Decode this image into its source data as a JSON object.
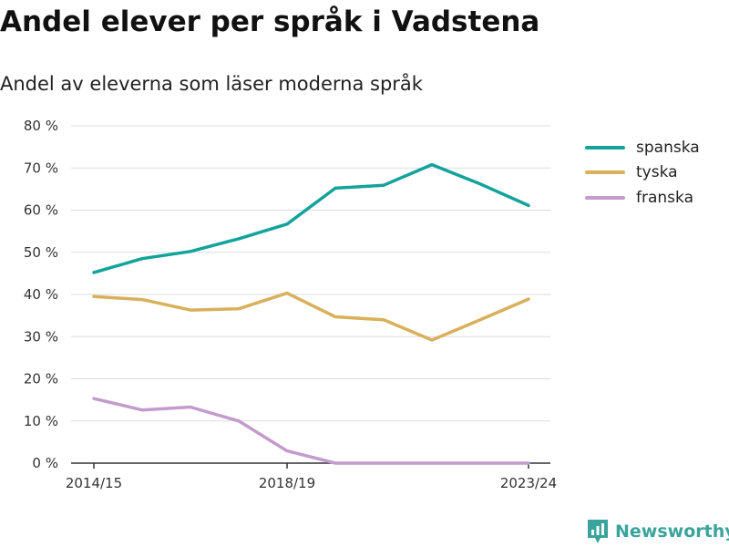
{
  "title": "Andel elever per språk i Vadstena",
  "subtitle": "Andel av eleverna som läser moderna språk",
  "brand": {
    "name": "Newsworthy",
    "icon": "newsworthy-logo-icon",
    "color": "#3aa39b"
  },
  "chart_data": {
    "type": "line",
    "title": "Andel elever per språk i Vadstena",
    "subtitle": "Andel av eleverna som läser moderna språk",
    "xlabel": "",
    "ylabel": "",
    "x": [
      "2014/15",
      "2015/16",
      "2016/17",
      "2017/18",
      "2018/19",
      "2019/20",
      "2020/21",
      "2021/22",
      "2022/23",
      "2023/24"
    ],
    "x_tick_labels": [
      "2014/15",
      "2018/19",
      "2023/24"
    ],
    "y_ticks": [
      0,
      10,
      20,
      30,
      40,
      50,
      60,
      70,
      80
    ],
    "y_tick_labels": [
      "0 %",
      "10 %",
      "20 %",
      "30 %",
      "40 %",
      "50 %",
      "60 %",
      "70 %",
      "80 %"
    ],
    "ylim": [
      0,
      80
    ],
    "grid": true,
    "legend": "right",
    "series": [
      {
        "name": "spanska",
        "color": "#13a39a",
        "values": [
          45.2,
          48.5,
          50.2,
          53.2,
          56.7,
          65.2,
          65.9,
          70.8,
          66.2,
          61.1
        ]
      },
      {
        "name": "tyska",
        "color": "#d9b05b",
        "values": [
          39.5,
          38.8,
          36.3,
          36.6,
          40.3,
          34.7,
          34.0,
          29.2,
          34.0,
          38.9
        ]
      },
      {
        "name": "franska",
        "color": "#c39bcc",
        "values": [
          15.3,
          12.6,
          13.3,
          10.0,
          2.9,
          0.0,
          0.0,
          0.0,
          0.0,
          0.0
        ]
      }
    ]
  }
}
